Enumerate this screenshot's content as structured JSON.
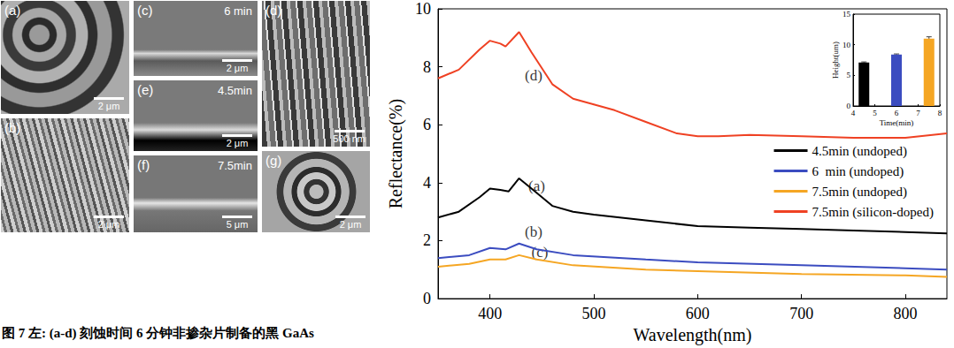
{
  "caption": "图 7  左: (a-d) 刻蚀时间 6 分钟非掺杂片制备的黑 GaAs",
  "sem_panels": [
    {
      "label": "(a)",
      "scale": "2 μm"
    },
    {
      "label": "(b)",
      "scale": "2 μm"
    },
    {
      "label": "(c)",
      "time": "6 min",
      "scale": "2 μm"
    },
    {
      "label": "(d)",
      "scale": "500 nm"
    },
    {
      "label": "(e)",
      "time": "4.5min",
      "scale": "2 μm"
    },
    {
      "label": "(f)",
      "time": "7.5min",
      "scale": "5 μm"
    },
    {
      "label": "(g)",
      "scale": "2 μm"
    }
  ],
  "chart_data": [
    {
      "type": "line",
      "x_label": "Wavelength(nm)",
      "y_label": "Reflectance(%)",
      "xlim": [
        350,
        840
      ],
      "xticks": [
        400,
        500,
        600,
        700,
        800
      ],
      "ylim": [
        0,
        10
      ],
      "yticks": [
        0,
        2,
        4,
        6,
        8,
        10
      ],
      "grid": false,
      "legend": "upper right",
      "series": [
        {
          "name": "4.5min (undoped)",
          "color": "#000000",
          "x": [
            350,
            370,
            390,
            400,
            410,
            418,
            428,
            440,
            460,
            480,
            500,
            550,
            600,
            650,
            700,
            750,
            800,
            840
          ],
          "values": [
            2.8,
            3.0,
            3.5,
            3.8,
            3.75,
            3.7,
            4.15,
            3.8,
            3.2,
            3.0,
            2.9,
            2.7,
            2.5,
            2.45,
            2.4,
            2.35,
            2.3,
            2.25
          ]
        },
        {
          "name": "6  min (undoped)",
          "color": "#3b4cc0",
          "x": [
            350,
            380,
            400,
            415,
            428,
            445,
            480,
            550,
            600,
            700,
            800,
            840
          ],
          "values": [
            1.4,
            1.5,
            1.75,
            1.7,
            1.9,
            1.7,
            1.5,
            1.35,
            1.25,
            1.15,
            1.05,
            1.0
          ]
        },
        {
          "name": "7.5min (undoped)",
          "color": "#f5a623",
          "x": [
            350,
            380,
            400,
            415,
            428,
            445,
            480,
            550,
            600,
            700,
            800,
            840
          ],
          "values": [
            1.1,
            1.2,
            1.35,
            1.35,
            1.5,
            1.35,
            1.15,
            1.0,
            0.95,
            0.85,
            0.8,
            0.75
          ]
        },
        {
          "name": "7.5min (silicon-doped)",
          "color": "#ef4123",
          "x": [
            350,
            370,
            390,
            400,
            410,
            415,
            428,
            440,
            460,
            480,
            500,
            520,
            550,
            580,
            600,
            620,
            650,
            700,
            750,
            800,
            840
          ],
          "values": [
            7.6,
            7.9,
            8.6,
            8.9,
            8.8,
            8.7,
            9.2,
            8.5,
            7.4,
            6.9,
            6.7,
            6.5,
            6.1,
            5.7,
            5.6,
            5.6,
            5.65,
            5.6,
            5.55,
            5.55,
            5.7
          ]
        }
      ],
      "annotations": [
        {
          "text": "(d)",
          "x": 442,
          "y": 7.7
        },
        {
          "text": "(a)",
          "x": 445,
          "y": 3.9
        },
        {
          "text": "(b)",
          "x": 442,
          "y": 2.3
        },
        {
          "text": "(c)",
          "x": 448,
          "y": 1.6
        }
      ]
    },
    {
      "type": "bar",
      "x_label": "Time(min)",
      "y_label": "Height(um)",
      "x": [
        4.5,
        6,
        7.5
      ],
      "values": [
        7.1,
        8.4,
        11.0
      ],
      "errors": [
        0.1,
        0.1,
        0.3
      ],
      "colors": [
        "#000000",
        "#3b4cc0",
        "#f5a623"
      ],
      "xlim": [
        4,
        8
      ],
      "xticks": [
        4,
        5,
        6,
        7,
        8
      ],
      "ylim": [
        0,
        15
      ],
      "yticks": [
        0,
        5,
        10,
        15
      ]
    }
  ]
}
